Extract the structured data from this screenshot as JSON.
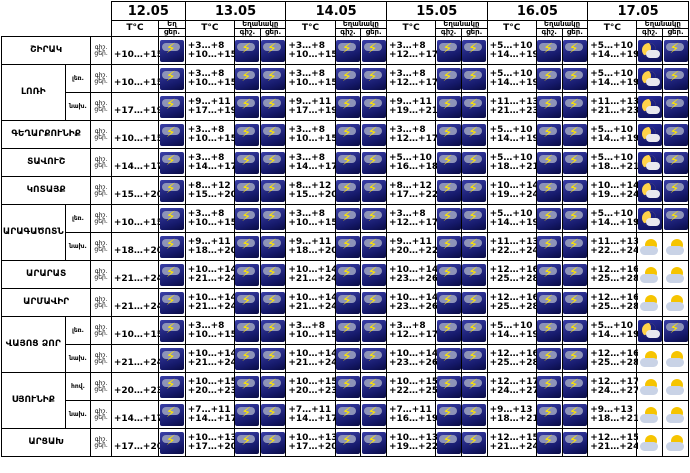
{
  "dates": [
    "12.05",
    "13.05",
    "14.05",
    "15.05",
    "16.05",
    "17.05"
  ],
  "header": {
    "temp_label": "T°C",
    "icon_label_big": "Եղ",
    "icon_label_small": "Եղանակը",
    "day_label": "ցեր.",
    "night_label": "գիշ.",
    "night_label_short": "գիշ.",
    "day_label_short": "ցեր."
  },
  "icon_legend": {
    "storm": "thunderstorm-icon",
    "night": "moon-cloud-icon",
    "sunny": "sun-cloud-icon"
  },
  "regions": [
    {
      "name": "ՇԻՐԱԿ",
      "rows": [
        {
          "sub": "",
          "temps": [
            "+10…+15",
            "+3…+8|+10…+15",
            "+3…+8|+10…+15",
            "+3…+8|+12…+17",
            "+5…+10|+14…+19",
            "+5…+10|+14…+19"
          ],
          "last_icon": "night"
        }
      ]
    },
    {
      "name": "ԼՈՌԻ",
      "rows": [
        {
          "sub": "լեռ.",
          "temps": [
            "+10…+15",
            "+3…+8|+10…+15",
            "+3…+8|+10…+15",
            "+3…+8|+12…+17",
            "+5…+10|+14…+19",
            "+5…+10|+14…+19"
          ],
          "last_icon": "night"
        },
        {
          "sub": "նախ.",
          "temps": [
            "+17…+19",
            "+9…+11|+17…+19",
            "+9…+11|+17…+19",
            "+9…+11|+19…+21",
            "+11…+13|+21…+23",
            "+11…+13|+21…+23"
          ],
          "last_icon": "night"
        }
      ]
    },
    {
      "name": "ԳԵՂԱՐՔՈՒՆԻՔ",
      "rows": [
        {
          "sub": "",
          "temps": [
            "+10…+15",
            "+3…+8|+10…+15",
            "+3…+8|+10…+15",
            "+3…+8|+12…+17",
            "+5…+10|+14…+19",
            "+5…+10|+14…+19"
          ],
          "last_icon": "night"
        }
      ]
    },
    {
      "name": "ՏԱՎՈՒՇ",
      "rows": [
        {
          "sub": "",
          "temps": [
            "+14…+17",
            "+3…+8|+14…+17",
            "+3…+8|+14…+17",
            "+5…+10|+16…+18",
            "+5…+10|+18…+21",
            "+5…+10|+18…+21"
          ],
          "last_icon": "night"
        }
      ]
    },
    {
      "name": "ԿՈՏԱՅՔ",
      "rows": [
        {
          "sub": "",
          "temps": [
            "+15…+20",
            "+8…+12|+15…+20",
            "+8…+12|+15…+20",
            "+8…+12|+17…+22",
            "+10…+14|+19…+24",
            "+10…+14|+19…+24"
          ],
          "last_icon": "night"
        }
      ]
    },
    {
      "name": "ԱՐԱԳԱԾՈՏՆ",
      "rows": [
        {
          "sub": "լեռ.",
          "temps": [
            "+10…+15",
            "+3…+8|+10…+15",
            "+3…+8|+10…+15",
            "+3…+8|+12…+17",
            "+5…+10|+14…+19",
            "+5…+10|+14…+19"
          ],
          "last_icon": "night"
        },
        {
          "sub": "նախ.",
          "temps": [
            "+18…+20",
            "+9…+11|+18…+20",
            "+9…+11|+18…+20",
            "+9…+11|+20…+22",
            "+11…+13|+22…+24",
            "+11…+13|+22…+24"
          ],
          "last_icon": "sunny"
        }
      ]
    },
    {
      "name": "ԱՐԱՐԱՏ",
      "rows": [
        {
          "sub": "",
          "temps": [
            "+21…+24",
            "+10…+14|+21…+24",
            "+10…+14|+21…+24",
            "+10…+14|+23…+26",
            "+12…+16|+25…+28",
            "+12…+16|+25…+28"
          ],
          "last_icon": "sunny"
        }
      ]
    },
    {
      "name": "ԱՐՄԱՎԻՐ",
      "rows": [
        {
          "sub": "",
          "temps": [
            "+21…+24",
            "+10…+14|+21…+24",
            "+10…+14|+21…+24",
            "+10…+14|+23…+26",
            "+12…+16|+25…+28",
            "+12…+16|+25…+28"
          ],
          "last_icon": "sunny"
        }
      ]
    },
    {
      "name": "ՎԱՅՈՑ ՁՈՐ",
      "rows": [
        {
          "sub": "լեռ.",
          "temps": [
            "+10…+15",
            "+3…+8|+10…+15",
            "+3…+8|+10…+15",
            "+3…+8|+12…+17",
            "+5…+10|+14…+19",
            "+5…+10|+14…+19"
          ],
          "last_icon": "night"
        },
        {
          "sub": "նախ.",
          "temps": [
            "+21…+24",
            "+10…+14|+21…+24",
            "+10…+14|+21…+24",
            "+10…+14|+23…+26",
            "+12…+16|+25…+28",
            "+12…+16|+25…+28"
          ],
          "last_icon": "sunny"
        }
      ]
    },
    {
      "name": "ՍՅՈՒՆԻՔ",
      "rows": [
        {
          "sub": "հով.",
          "temps": [
            "+20…+23",
            "+10…+15|+20…+23",
            "+10…+15|+20…+23",
            "+10…+15|+22…+25",
            "+12…+17|+24…+27",
            "+12…+17|+24…+27"
          ],
          "last_icon": "sunny"
        },
        {
          "sub": "նախ.",
          "temps": [
            "+14…+17",
            "+7…+11|+14…+17",
            "+7…+11|+14…+17",
            "+7…+11|+16…+19",
            "+9…+13|+18…+21",
            "+9…+13|+18…+21"
          ],
          "last_icon": "sunny"
        }
      ]
    },
    {
      "name": "ԱՐՑԱԽ",
      "rows": [
        {
          "sub": "",
          "temps": [
            "+17…+20",
            "+10…+13|+17…+20",
            "+10…+13|+17…+20",
            "+10…+13|+19…+22",
            "+12…+15|+21…+24",
            "+12…+15|+21…+24"
          ],
          "last_icon": "sunny"
        }
      ]
    }
  ]
}
